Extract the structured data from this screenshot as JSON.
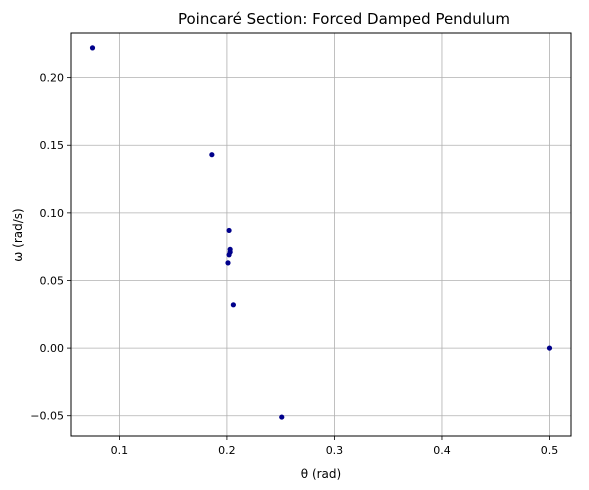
{
  "chart_data": {
    "type": "scatter",
    "title": "Poincaré Section: Forced Damped Pendulum",
    "xlabel": "θ (rad)",
    "ylabel": "ω (rad/s)",
    "xlim": [
      0.055,
      0.52
    ],
    "ylim": [
      -0.065,
      0.233
    ],
    "xticks": [
      0.1,
      0.2,
      0.3,
      0.4,
      0.5
    ],
    "xtick_labels": [
      "0.1",
      "0.2",
      "0.3",
      "0.4",
      "0.5"
    ],
    "yticks": [
      -0.05,
      0.0,
      0.05,
      0.1,
      0.15,
      0.2
    ],
    "ytick_labels": [
      "−0.05",
      "0.00",
      "0.05",
      "0.10",
      "0.15",
      "0.20"
    ],
    "grid": true,
    "marker_color": "#00008b",
    "points": [
      {
        "x": 0.5,
        "y": 0.0
      },
      {
        "x": 0.075,
        "y": 0.222
      },
      {
        "x": 0.186,
        "y": 0.143
      },
      {
        "x": 0.202,
        "y": 0.087
      },
      {
        "x": 0.203,
        "y": 0.073
      },
      {
        "x": 0.203,
        "y": 0.071
      },
      {
        "x": 0.202,
        "y": 0.069
      },
      {
        "x": 0.201,
        "y": 0.063
      },
      {
        "x": 0.206,
        "y": 0.032
      },
      {
        "x": 0.251,
        "y": -0.051
      }
    ]
  }
}
